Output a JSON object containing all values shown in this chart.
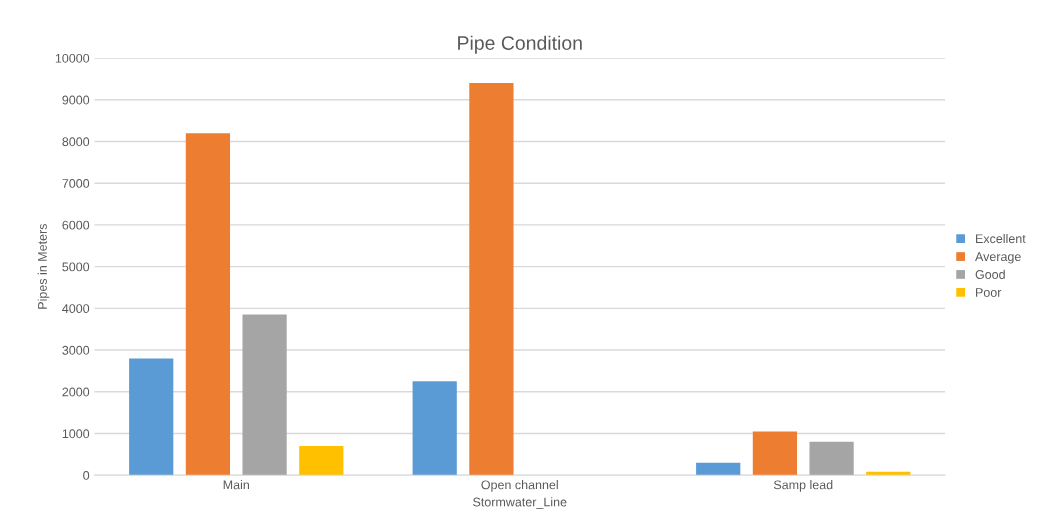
{
  "chart_data": {
    "type": "bar",
    "title": "Pipe Condition",
    "xlabel": "Stormwater_Line",
    "ylabel": "Pipes in Meters",
    "categories": [
      "Main",
      "Open channel",
      "Samp lead"
    ],
    "series": [
      {
        "name": "Excellent",
        "color": "#5b9bd5",
        "values": [
          2800,
          2250,
          300
        ]
      },
      {
        "name": "Average",
        "color": "#ed7d31",
        "values": [
          8200,
          9400,
          1050
        ]
      },
      {
        "name": "Good",
        "color": "#a5a5a5",
        "values": [
          3850,
          null,
          800
        ]
      },
      {
        "name": "Poor",
        "color": "#ffc000",
        "values": [
          700,
          null,
          80
        ]
      }
    ],
    "ylim": [
      0,
      10000
    ],
    "yticks": [
      0,
      1000,
      2000,
      3000,
      4000,
      5000,
      6000,
      7000,
      8000,
      9000,
      10000
    ],
    "grid": "y",
    "legend": "right"
  }
}
